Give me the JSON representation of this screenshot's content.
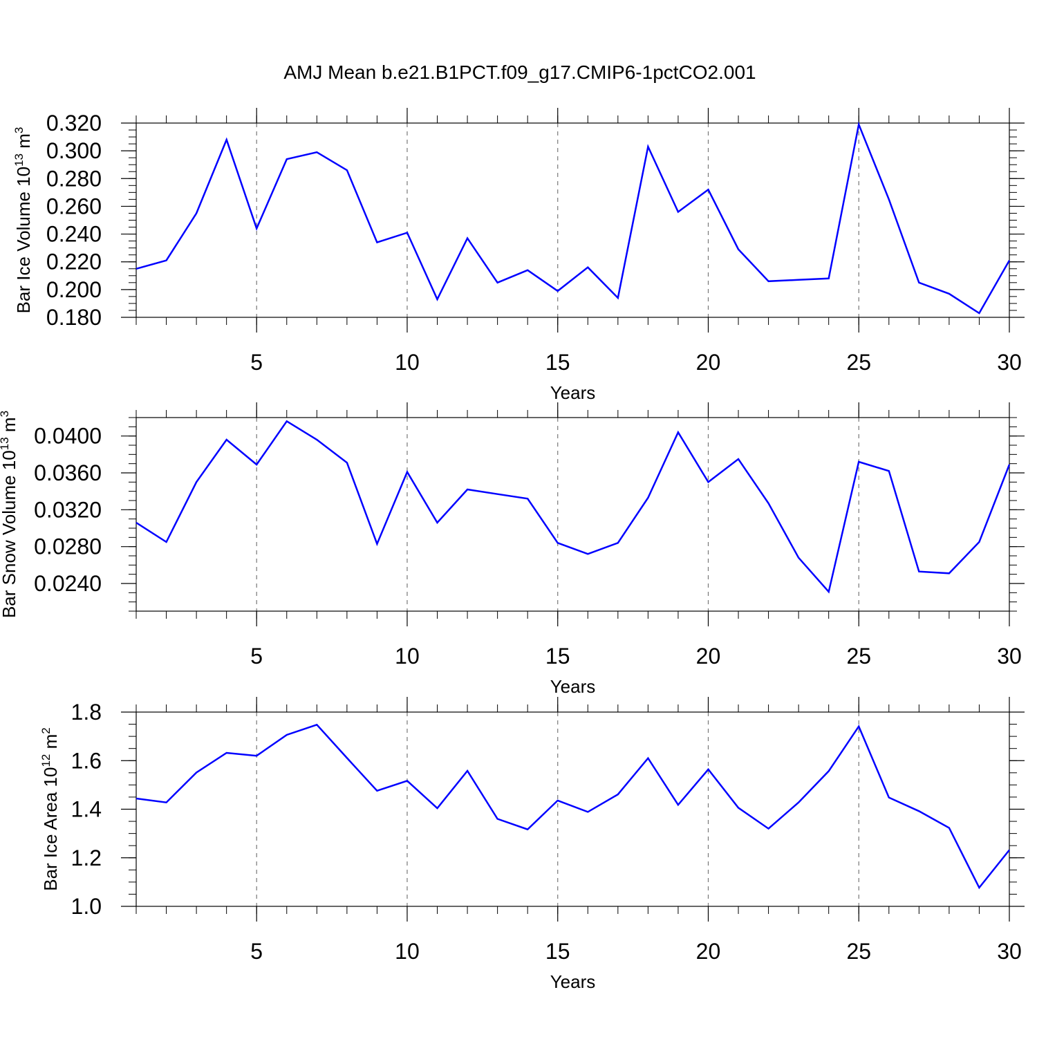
{
  "title": "AMJ Mean b.e21.B1PCT.f09_g17.CMIP6-1pctCO2.001",
  "chart_data": [
    {
      "type": "line",
      "xlabel": "Years",
      "ylabel_main": "Bar Ice Volume 10",
      "ylabel_exp": "13",
      "ylabel_unit": " m",
      "ylabel_unit_exp": "3",
      "xlim": [
        1,
        30
      ],
      "ylim": [
        0.18,
        0.32
      ],
      "x_ticks": [
        "5",
        "10",
        "15",
        "20",
        "25",
        "30"
      ],
      "y_ticks": [
        "0.180",
        "0.200",
        "0.220",
        "0.240",
        "0.260",
        "0.280",
        "0.300",
        "0.320"
      ],
      "grid": "vertical dashed at major x ticks",
      "color": "#0000ff",
      "x": [
        1,
        2,
        3,
        4,
        5,
        6,
        7,
        8,
        9,
        10,
        11,
        12,
        13,
        14,
        15,
        16,
        17,
        18,
        19,
        20,
        21,
        22,
        23,
        24,
        25,
        26,
        27,
        28,
        29,
        30
      ],
      "values": [
        0.215,
        0.221,
        0.255,
        0.308,
        0.244,
        0.294,
        0.299,
        0.286,
        0.234,
        0.241,
        0.193,
        0.237,
        0.205,
        0.214,
        0.199,
        0.216,
        0.194,
        0.303,
        0.256,
        0.272,
        0.229,
        0.206,
        0.207,
        0.208,
        0.319,
        0.265,
        0.205,
        0.197,
        0.183,
        0.221
      ]
    },
    {
      "type": "line",
      "xlabel": "Years",
      "ylabel_main": "Bar Snow Volume 10",
      "ylabel_exp": "13",
      "ylabel_unit": " m",
      "ylabel_unit_exp": "3",
      "xlim": [
        1,
        30
      ],
      "ylim": [
        0.021,
        0.042
      ],
      "x_ticks": [
        "5",
        "10",
        "15",
        "20",
        "25",
        "30"
      ],
      "y_ticks": [
        "0.0240",
        "0.0280",
        "0.0320",
        "0.0360",
        "0.0400"
      ],
      "grid": "vertical dashed at major x ticks",
      "color": "#0000ff",
      "x": [
        1,
        2,
        3,
        4,
        5,
        6,
        7,
        8,
        9,
        10,
        11,
        12,
        13,
        14,
        15,
        16,
        17,
        18,
        19,
        20,
        21,
        22,
        23,
        24,
        25,
        26,
        27,
        28,
        29,
        30
      ],
      "values": [
        0.0306,
        0.0285,
        0.035,
        0.0396,
        0.0369,
        0.0416,
        0.0396,
        0.0371,
        0.0283,
        0.0361,
        0.0306,
        0.0342,
        0.0337,
        0.0332,
        0.0284,
        0.0272,
        0.0284,
        0.0333,
        0.0404,
        0.035,
        0.0375,
        0.0327,
        0.0268,
        0.0231,
        0.0372,
        0.0362,
        0.0253,
        0.0251,
        0.0285,
        0.0369
      ]
    },
    {
      "type": "line",
      "xlabel": "Years",
      "ylabel_main": "Bar Ice Area 10",
      "ylabel_exp": "12",
      "ylabel_unit": " m",
      "ylabel_unit_exp": "2",
      "xlim": [
        1,
        30
      ],
      "ylim": [
        1.0,
        1.8
      ],
      "x_ticks": [
        "5",
        "10",
        "15",
        "20",
        "25",
        "30"
      ],
      "y_ticks": [
        "1.0",
        "1.2",
        "1.4",
        "1.6",
        "1.8"
      ],
      "grid": "vertical dashed at major x ticks",
      "color": "#0000ff",
      "x": [
        1,
        2,
        3,
        4,
        5,
        6,
        7,
        8,
        9,
        10,
        11,
        12,
        13,
        14,
        15,
        16,
        17,
        18,
        19,
        20,
        21,
        22,
        23,
        24,
        25,
        26,
        27,
        28,
        29,
        30
      ],
      "values": [
        1.444,
        1.428,
        1.551,
        1.632,
        1.62,
        1.706,
        1.748,
        1.611,
        1.476,
        1.517,
        1.404,
        1.558,
        1.36,
        1.317,
        1.436,
        1.389,
        1.461,
        1.61,
        1.418,
        1.564,
        1.406,
        1.32,
        1.428,
        1.557,
        1.741,
        1.448,
        1.392,
        1.323,
        1.077,
        1.232
      ]
    }
  ]
}
